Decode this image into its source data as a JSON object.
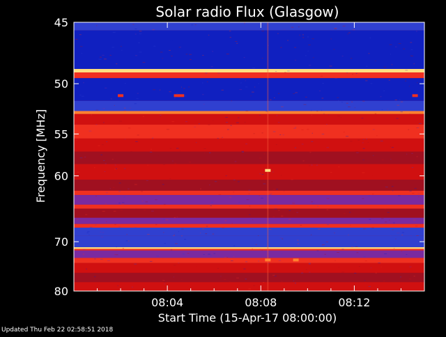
{
  "chart_data": {
    "type": "heatmap",
    "title": "Solar radio Flux (Glasgow)",
    "xlabel": "Start Time (15-Apr-17 08:00:00)",
    "ylabel": "Frequency [MHz]",
    "x_unit": "minutes after 08:00",
    "xlim": [
      0,
      15
    ],
    "ylim": [
      45,
      80
    ],
    "x_ticks": [
      {
        "value": 4,
        "label": "08:04"
      },
      {
        "value": 8,
        "label": "08:08"
      },
      {
        "value": 12,
        "label": "08:12"
      }
    ],
    "y_ticks": [
      {
        "value": 45,
        "label": "45"
      },
      {
        "value": 50,
        "label": "50"
      },
      {
        "value": 55,
        "label": "55"
      },
      {
        "value": 60,
        "label": "60"
      },
      {
        "value": 70,
        "label": "70"
      },
      {
        "value": 80,
        "label": "80"
      }
    ],
    "colormap": [
      "#1020c0",
      "#3040d0",
      "#7a2aa0",
      "#a01020",
      "#d01010",
      "#f03020",
      "#ff8030",
      "#ffe080"
    ],
    "bands": [
      {
        "from": 45.0,
        "to": 45.6,
        "level": 1
      },
      {
        "from": 45.6,
        "to": 48.7,
        "level": 0
      },
      {
        "from": 48.7,
        "to": 49.0,
        "level": 7
      },
      {
        "from": 49.0,
        "to": 49.5,
        "level": 5
      },
      {
        "from": 49.5,
        "to": 51.6,
        "level": 0
      },
      {
        "from": 51.6,
        "to": 52.6,
        "level": 1
      },
      {
        "from": 52.6,
        "to": 52.9,
        "level": 6
      },
      {
        "from": 52.9,
        "to": 54.0,
        "level": 4
      },
      {
        "from": 54.0,
        "to": 55.5,
        "level": 5
      },
      {
        "from": 55.5,
        "to": 57.0,
        "level": 4
      },
      {
        "from": 57.0,
        "to": 58.5,
        "level": 3
      },
      {
        "from": 58.5,
        "to": 60.5,
        "level": 4
      },
      {
        "from": 60.5,
        "to": 62.0,
        "level": 3
      },
      {
        "from": 62.0,
        "to": 62.6,
        "level": 5
      },
      {
        "from": 62.6,
        "to": 64.0,
        "level": 2
      },
      {
        "from": 64.0,
        "to": 64.6,
        "level": 5
      },
      {
        "from": 64.6,
        "to": 66.0,
        "level": 3
      },
      {
        "from": 66.0,
        "to": 67.0,
        "level": 2
      },
      {
        "from": 67.0,
        "to": 67.6,
        "level": 5
      },
      {
        "from": 67.6,
        "to": 69.0,
        "level": 1
      },
      {
        "from": 69.0,
        "to": 71.0,
        "level": 1
      },
      {
        "from": 71.0,
        "to": 71.3,
        "level": 7
      },
      {
        "from": 71.3,
        "to": 71.6,
        "level": 5
      },
      {
        "from": 71.6,
        "to": 73.0,
        "level": 2
      },
      {
        "from": 73.0,
        "to": 74.0,
        "level": 5
      },
      {
        "from": 74.0,
        "to": 76.0,
        "level": 4
      },
      {
        "from": 76.0,
        "to": 78.0,
        "level": 3
      },
      {
        "from": 78.0,
        "to": 80.0,
        "level": 4
      }
    ],
    "hotspots": [
      {
        "x": 2.0,
        "y": 51.1,
        "level": 5
      },
      {
        "x": 4.4,
        "y": 51.1,
        "level": 5
      },
      {
        "x": 4.6,
        "y": 51.1,
        "level": 5
      },
      {
        "x": 8.3,
        "y": 59.3,
        "level": 7
      },
      {
        "x": 8.3,
        "y": 73.4,
        "level": 6
      },
      {
        "x": 9.5,
        "y": 73.4,
        "level": 6
      },
      {
        "x": 14.6,
        "y": 51.1,
        "level": 5
      }
    ]
  },
  "footer_text": "Updated Thu Feb 22 02:58:51 2018"
}
